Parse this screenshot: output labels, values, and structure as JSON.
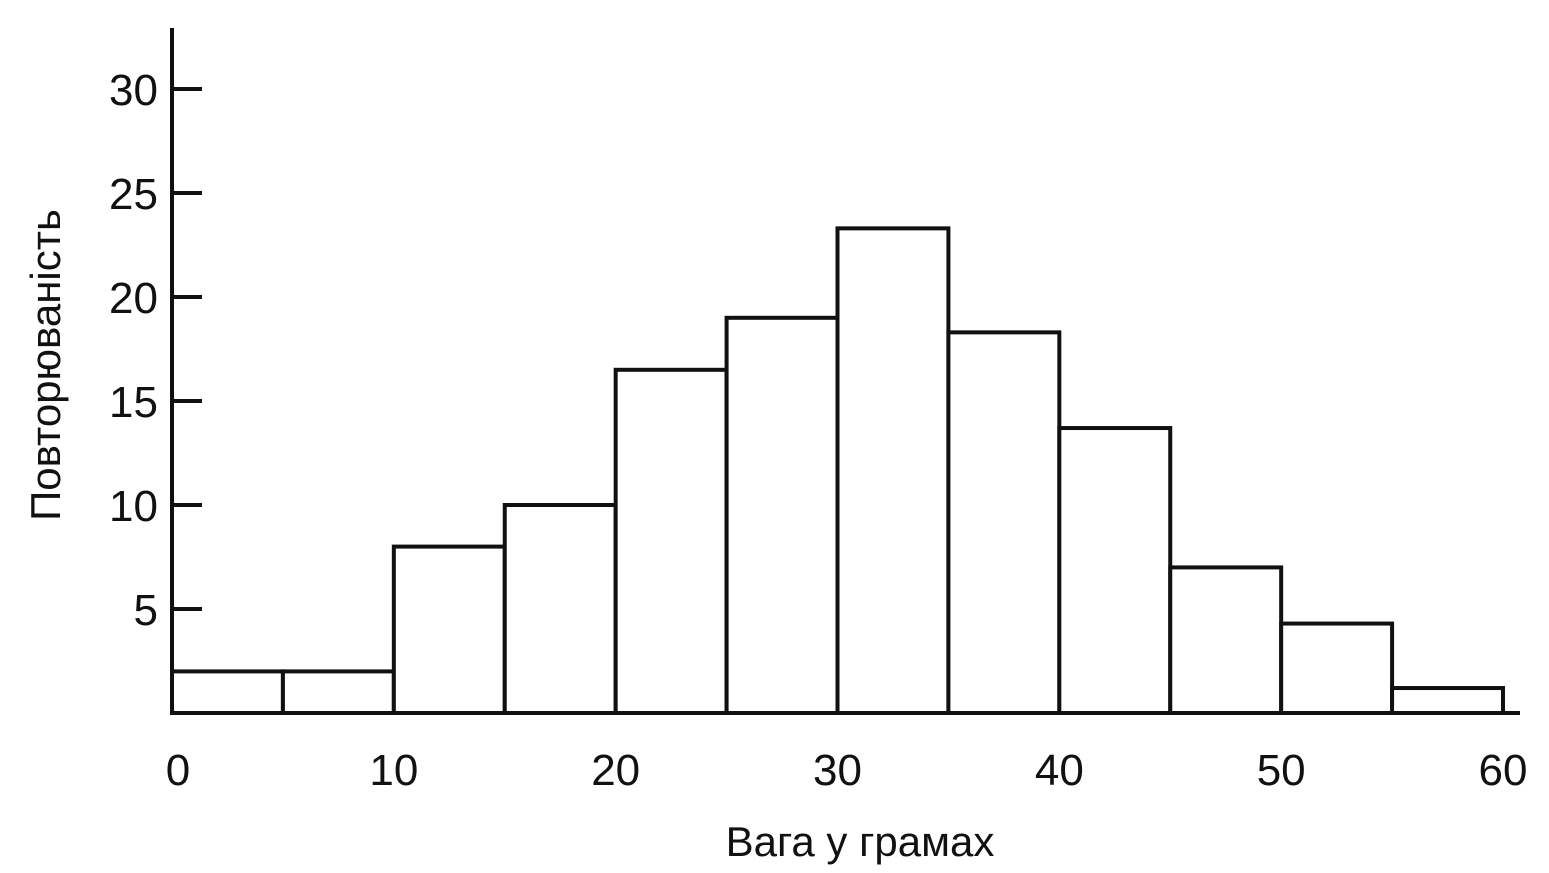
{
  "chart_data": {
    "type": "bar",
    "title": "",
    "xlabel": "Вага у грамах",
    "ylabel": "Повторюваність",
    "bin_edges": [
      0,
      5,
      10,
      15,
      20,
      25,
      30,
      35,
      40,
      45,
      50,
      55,
      60
    ],
    "values": [
      2,
      2,
      8,
      10,
      16.5,
      19,
      23.3,
      18.3,
      13.7,
      7,
      4.3,
      1.2
    ],
    "xlim": [
      0,
      60
    ],
    "ylim": [
      0,
      32
    ],
    "x_ticks": [
      "0",
      "10",
      "20",
      "30",
      "40",
      "50",
      "60"
    ],
    "y_ticks": [
      "5",
      "10",
      "15",
      "20",
      "25",
      "30"
    ],
    "grid": false,
    "colors": {
      "bar_fill": "#ffffff",
      "bar_edge": "#111111",
      "axis": "#111111"
    }
  }
}
